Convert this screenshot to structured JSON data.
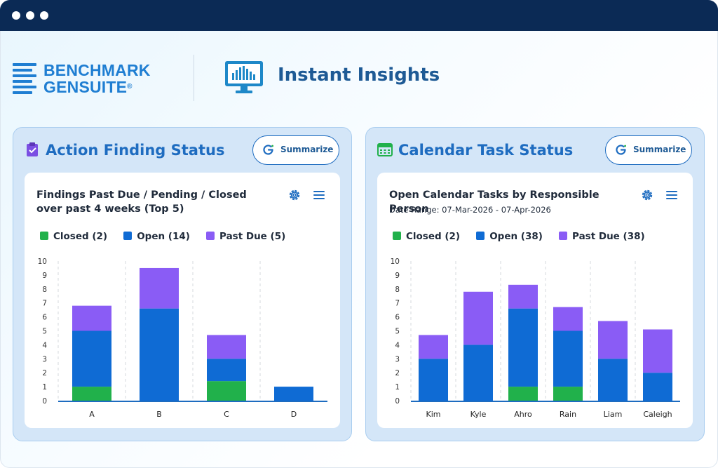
{
  "window": {
    "dots": [
      "dot",
      "dot",
      "dot"
    ]
  },
  "brand": {
    "line1": "BENCHMARK",
    "line2": "GENSUITE",
    "registered": "®"
  },
  "header": {
    "title": "Instant Insights",
    "icon": "monitor-chart-icon"
  },
  "colors": {
    "closed": "#21b14b",
    "open": "#0f6bd4",
    "past_due": "#8a5cf5",
    "accent": "#1e6cc0",
    "titlebar": "#0b2a55"
  },
  "panels": [
    {
      "title": "Action Finding Status",
      "icon": "clipboard-check-icon",
      "summarize_label": "Summarize",
      "card": {
        "title": "Findings Past Due / Pending / Closed over past 4 weeks (Top 5)",
        "subtitle": "",
        "legend": [
          {
            "label": "Closed (2)",
            "key": "closed"
          },
          {
            "label": "Open (14)",
            "key": "open"
          },
          {
            "label": "Past Due (5)",
            "key": "past_due"
          }
        ]
      }
    },
    {
      "title": "Calendar Task Status",
      "icon": "calendar-icon",
      "summarize_label": "Summarize",
      "card": {
        "title": "Open Calendar Tasks by Responsible Person",
        "subtitle": "Date Range: 07-Mar-2026 - 07-Apr-2026",
        "legend": [
          {
            "label": "Closed (2)",
            "key": "closed"
          },
          {
            "label": "Open (38)",
            "key": "open"
          },
          {
            "label": "Past Due (38)",
            "key": "past_due"
          }
        ]
      }
    }
  ],
  "chart_data": [
    {
      "type": "bar",
      "stacked": true,
      "categories": [
        "A",
        "B",
        "C",
        "D"
      ],
      "series": [
        {
          "name": "Closed (2)",
          "key": "closed",
          "values": [
            1,
            0,
            1.4,
            0
          ]
        },
        {
          "name": "Open (14)",
          "key": "open",
          "values": [
            4,
            6.6,
            1.6,
            1
          ]
        },
        {
          "name": "Past Due (5)",
          "key": "past_due",
          "values": [
            1.8,
            2.9,
            1.7,
            0
          ]
        }
      ],
      "ylim": [
        0,
        10
      ],
      "yticks": [
        "0",
        "1",
        "2",
        "3",
        "4",
        "5",
        "6",
        "7",
        "8",
        "9",
        "10"
      ],
      "grid": "vertical dashed",
      "legend": "top-left"
    },
    {
      "type": "bar",
      "stacked": true,
      "categories": [
        "Kim",
        "Kyle",
        "Ahro",
        "Rain",
        "Liam",
        "Caleigh"
      ],
      "series": [
        {
          "name": "Closed (2)",
          "key": "closed",
          "values": [
            0,
            0,
            1,
            1,
            0,
            0
          ]
        },
        {
          "name": "Open (38)",
          "key": "open",
          "values": [
            3,
            4,
            5.6,
            4,
            3,
            2
          ]
        },
        {
          "name": "Past Due (38)",
          "key": "past_due",
          "values": [
            1.7,
            3.8,
            1.7,
            1.7,
            2.7,
            3.1
          ]
        }
      ],
      "ylim": [
        0,
        10
      ],
      "yticks": [
        "0",
        "1",
        "2",
        "3",
        "4",
        "5",
        "6",
        "7",
        "8",
        "9",
        "10"
      ],
      "grid": "vertical dashed",
      "legend": "top-left"
    }
  ]
}
